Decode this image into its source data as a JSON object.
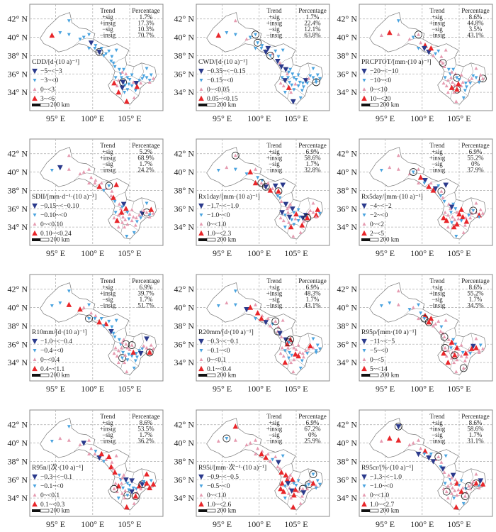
{
  "figure": {
    "x_ticks": [
      "95° E",
      "100° E",
      "105° E"
    ],
    "y_ticks": [
      "42° N",
      "40° N",
      "38° N",
      "36° N",
      "34° N"
    ],
    "x_tick_values": [
      95,
      100,
      105
    ],
    "y_tick_values": [
      42,
      40,
      38,
      36,
      34
    ],
    "lon_range": [
      91.5,
      109.5
    ],
    "lat_range": [
      32.0,
      43.6
    ],
    "scale_bar": "200 km",
    "table_headers": [
      "Trend",
      "Percentage"
    ],
    "trend_labels": [
      "+sig",
      "+insig",
      "−sig",
      "−insig"
    ],
    "colors": {
      "strong_neg": "#2b3a8c",
      "weak_neg": "#4aa3df",
      "weak_pos": "#e59ab0",
      "strong_pos": "#e8262a",
      "grid": "#b5b5b5",
      "border": "#888888",
      "sig_circle": "#222222"
    }
  },
  "panels": [
    {
      "index": "CDD",
      "legend_title": "CDD/[d·(10 a)⁻¹]",
      "classes": [
        "−5~<−3",
        "−3~<0",
        "0~<3",
        "3~<6"
      ],
      "percentages": [
        "1.7%",
        "17.3%",
        "10.3%",
        "70.7%"
      ]
    },
    {
      "index": "CWD",
      "legend_title": "CWD/[d·(10 a)⁻¹]",
      "classes": [
        "−0.35~<−0.15",
        "−0.15~<0",
        "0~<0.05",
        "0.05~<0.15"
      ],
      "percentages": [
        "1.7%",
        "22.4%",
        "12.1%",
        "63.8%"
      ]
    },
    {
      "index": "PRCPTOT",
      "legend_title": "PRCPTOT/[mm·(10 a)⁻¹]",
      "classes": [
        "−20~<−10",
        "−10~<0",
        "0~<10",
        "10~<20"
      ],
      "percentages": [
        "8.6%",
        "44.8%",
        "3.5%",
        "43.1%"
      ]
    },
    {
      "index": "SDII",
      "legend_title": "SDII/[mm·d⁻¹·(10 a)⁻¹]",
      "classes": [
        "−0.15~<−0.10",
        "−0.10~<0",
        "0~<0.10",
        "0.10~<0.24"
      ],
      "percentages": [
        "5.2%",
        "68.9%",
        "1.7%",
        "24.2%"
      ]
    },
    {
      "index": "Rx1day",
      "legend_title": "Rx1day/[mm·(10 a)⁻¹]",
      "classes": [
        "−1.7~<−1.0",
        "−1.0~<0",
        "0~<1.0",
        "1.0~<2.3"
      ],
      "percentages": [
        "6.9%",
        "58.6%",
        "1.7%",
        "32.8%"
      ]
    },
    {
      "index": "Rx5day",
      "legend_title": "Rx5day/[mm·(10 a)⁻¹]",
      "classes": [
        "−4~<−2",
        "−2~<0",
        "0~<2",
        "2~<5"
      ],
      "percentages": [
        "6.9%",
        "55.2%",
        "0%",
        "37.9%"
      ]
    },
    {
      "index": "R10mm",
      "legend_title": "R10mm/[d·(10 a)⁻¹]",
      "classes": [
        "−1.0~<−0.4",
        "−0.4~<0",
        "0~<0.4",
        "0.4~<1.1"
      ],
      "percentages": [
        "6.9%",
        "39.7%",
        "1.7%",
        "51.7%"
      ]
    },
    {
      "index": "R20mm",
      "legend_title": "R20mm/[d·(10 a)⁻¹]",
      "classes": [
        "−0.3~<−0.1",
        "−0.1~<0",
        "0~<0.1",
        "0.1~<0.4"
      ],
      "percentages": [
        "6.9%",
        "48.3%",
        "1.7%",
        "43.1%"
      ]
    },
    {
      "index": "R95p",
      "legend_title": "R95p/[mm·(10 a)⁻¹]",
      "classes": [
        "−11~<−5",
        "−5~<0",
        "0~<5",
        "5~<14"
      ],
      "percentages": [
        "8.6%",
        "55.2%",
        "1.7%",
        "34.5%"
      ]
    },
    {
      "index": "R95n",
      "legend_title": "R95n/[次·(10 a)⁻¹]",
      "classes": [
        "−0.3~<−0.1",
        "−0.1~<0",
        "0~<0.1",
        "0.1~<0.3"
      ],
      "percentages": [
        "8.6%",
        "53.5%",
        "1.7%",
        "36.2%"
      ]
    },
    {
      "index": "R95i",
      "legend_title": "R95i/[mm·次⁻¹·(10 a)⁻¹]",
      "classes": [
        "−0.9~<−0.5",
        "−0.5~<0",
        "0~<1.0",
        "1.0~<2.6"
      ],
      "percentages": [
        "6.9%",
        "67.2%",
        "0%",
        "25.9%"
      ]
    },
    {
      "index": "R95cr",
      "legend_title": "R95cr/[%·(10 a)⁻¹]",
      "classes": [
        "−1.3~<−1.0",
        "−1.0~<0",
        "0~<1.0",
        "1.0~<2.7"
      ],
      "percentages": [
        "8.6%",
        "58.6%",
        "1.7%",
        "31.1%"
      ]
    }
  ]
}
